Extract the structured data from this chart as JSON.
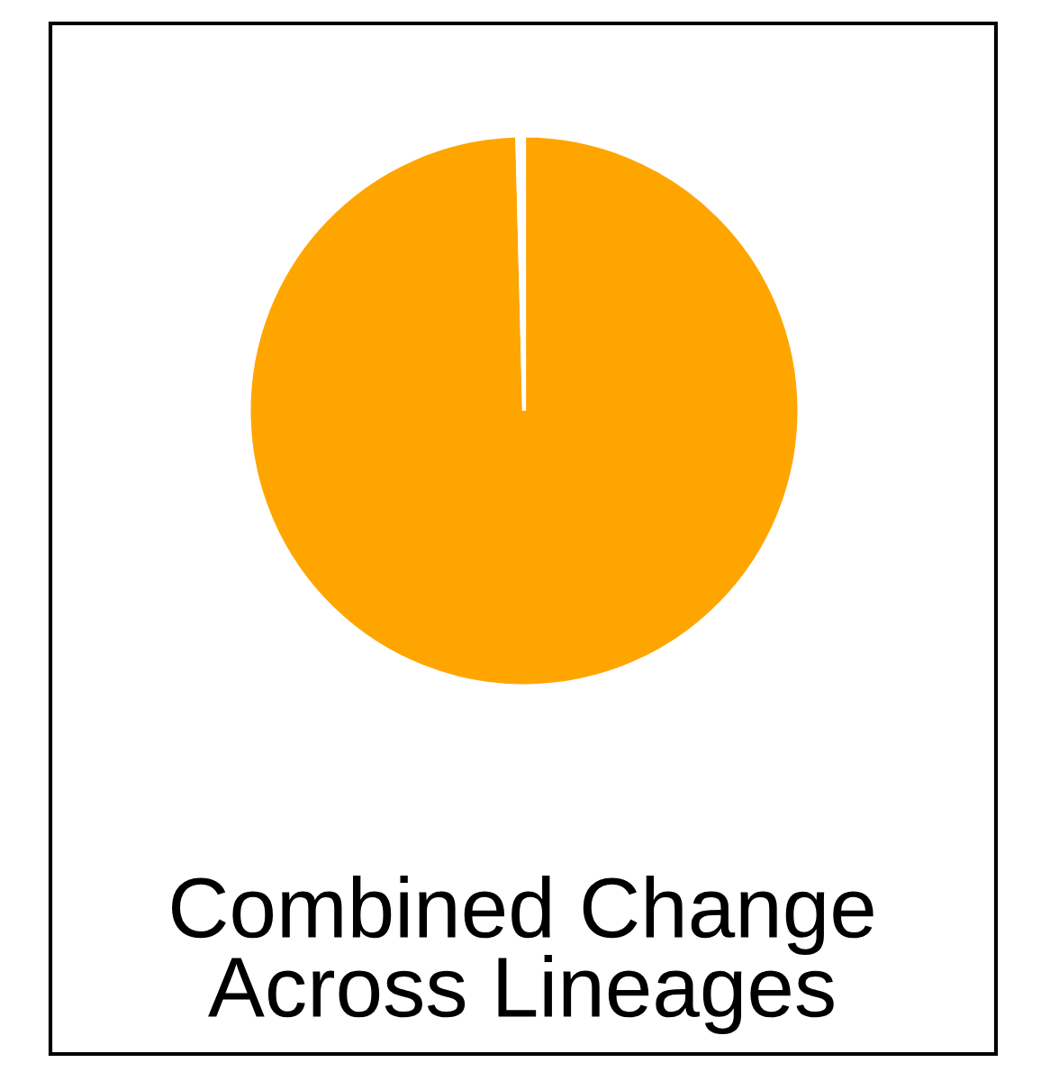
{
  "chart_data": {
    "type": "pie",
    "title": "Combined Change\nAcross Lineages",
    "categories": [
      null,
      null
    ],
    "values": [
      99.6,
      0.4
    ],
    "colors": [
      "#ffa500",
      "#ffffff"
    ]
  }
}
